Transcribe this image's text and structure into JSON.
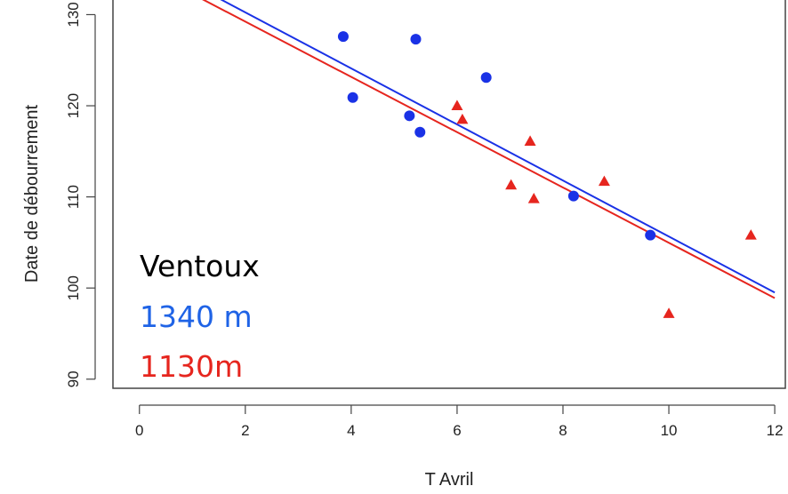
{
  "chart_data": {
    "type": "scatter",
    "xlabel": "T Avril",
    "ylabel": "Date de débourrement",
    "xlim": [
      -0.5,
      12.2
    ],
    "ylim": [
      89,
      131.8
    ],
    "xticks": [
      0,
      2,
      4,
      6,
      8,
      10,
      12
    ],
    "yticks": [
      90,
      100,
      110,
      120,
      130
    ],
    "grid": false,
    "legend": {
      "placement": "bottom-left",
      "lines": [
        {
          "text": "Ventoux",
          "color": "#000000"
        },
        {
          "text": "1340 m",
          "color": "#1f63e6"
        },
        {
          "text": "1130m",
          "color": "#e6251e"
        }
      ]
    },
    "series": [
      {
        "name": "1340 m",
        "color": "#1a32e6",
        "marker": "circle",
        "points": [
          [
            3.85,
            127.6
          ],
          [
            4.03,
            120.9
          ],
          [
            5.1,
            118.9
          ],
          [
            5.22,
            127.3
          ],
          [
            5.3,
            117.1
          ],
          [
            6.55,
            123.1
          ],
          [
            8.2,
            110.1
          ],
          [
            9.65,
            105.8
          ]
        ],
        "fit": {
          "x": [
            0,
            12
          ],
          "y": [
            136.4,
            99.5
          ]
        }
      },
      {
        "name": "1130m",
        "color": "#e6251e",
        "marker": "triangle",
        "points": [
          [
            6.0,
            120.0
          ],
          [
            6.1,
            118.5
          ],
          [
            7.02,
            111.3
          ],
          [
            7.38,
            116.1
          ],
          [
            7.45,
            109.8
          ],
          [
            8.78,
            111.7
          ],
          [
            10.0,
            97.2
          ],
          [
            11.55,
            105.8
          ]
        ],
        "fit": {
          "x": [
            0,
            12
          ],
          "y": [
            135.3,
            98.9
          ]
        }
      }
    ]
  }
}
